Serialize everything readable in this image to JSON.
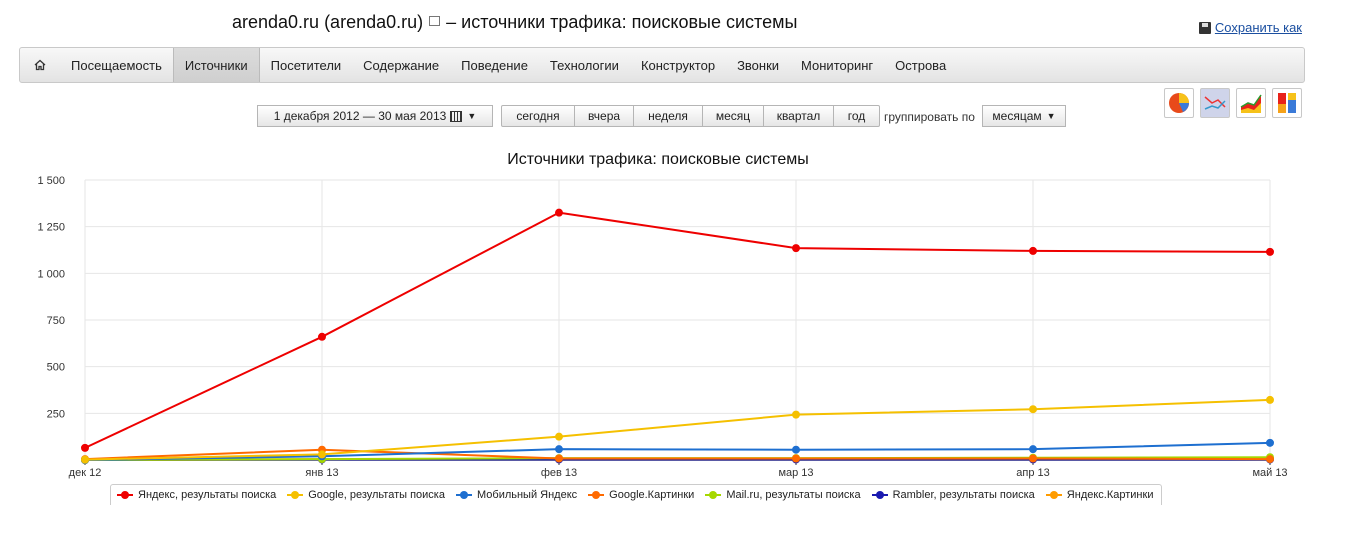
{
  "header": {
    "title_site": "arenda0.ru (arenda0.ru)",
    "title_rest": "– источники трафика: поисковые системы",
    "save_label": "Сохранить как"
  },
  "nav": {
    "home_icon": "home-icon",
    "items": [
      "Посещаемость",
      "Источники",
      "Посетители",
      "Содержание",
      "Поведение",
      "Технологии",
      "Конструктор",
      "Звонки",
      "Мониторинг",
      "Острова"
    ],
    "active": "Источники"
  },
  "controls": {
    "date_range": "1 декабря 2012 — 30 мая 2013",
    "periods": [
      "сегодня",
      "вчера",
      "неделя",
      "месяц",
      "квартал",
      "год"
    ],
    "group_label": "группировать по",
    "group_value": "месяцам"
  },
  "chart_types": [
    "pie-chart-icon",
    "line-chart-icon",
    "area-chart-icon",
    "stacked-chart-icon"
  ],
  "colors": {
    "yandex": "#ee0000",
    "google": "#f5c000",
    "mobile_yandex": "#1e6fd0",
    "google_images": "#ff6a00",
    "mailru": "#a6d800",
    "rambler": "#1a1ab0",
    "yandex_images": "#ff9c00"
  },
  "chart_data": {
    "type": "line",
    "title": "Источники трафика: поисковые системы",
    "x": [
      "дек 12",
      "янв 13",
      "фев 13",
      "мар 13",
      "апр 13",
      "май 13"
    ],
    "ylim": [
      0,
      1500
    ],
    "yticks": [
      "1 500",
      "1 250",
      "1 000",
      "750",
      "500",
      "250"
    ],
    "ytick_values": [
      1500,
      1250,
      1000,
      750,
      500,
      250
    ],
    "grid": true,
    "legend": "bottom",
    "series": [
      {
        "name": "Яндекс, результаты поиска",
        "color": "#ee0000",
        "values": [
          65,
          660,
          1325,
          1135,
          1120,
          1115
        ]
      },
      {
        "name": "Google, результаты поиска",
        "color": "#f5c000",
        "values": [
          2,
          30,
          125,
          243,
          272,
          322
        ]
      },
      {
        "name": "Мобильный Яндекс",
        "color": "#1e6fd0",
        "values": [
          0,
          20,
          58,
          55,
          58,
          92
        ]
      },
      {
        "name": "Google.Картинки",
        "color": "#ff6a00",
        "values": [
          5,
          55,
          8,
          8,
          8,
          5
        ]
      },
      {
        "name": "Mail.ru, результаты поиска",
        "color": "#a6d800",
        "values": [
          0,
          5,
          10,
          10,
          12,
          15
        ]
      },
      {
        "name": "Rambler, результаты поиска",
        "color": "#1a1ab0",
        "values": [
          0,
          3,
          3,
          3,
          3,
          3
        ]
      },
      {
        "name": "Яндекс.Картинки",
        "color": "#ff9c00",
        "values": [
          0,
          5,
          5,
          5,
          5,
          5
        ]
      }
    ]
  }
}
